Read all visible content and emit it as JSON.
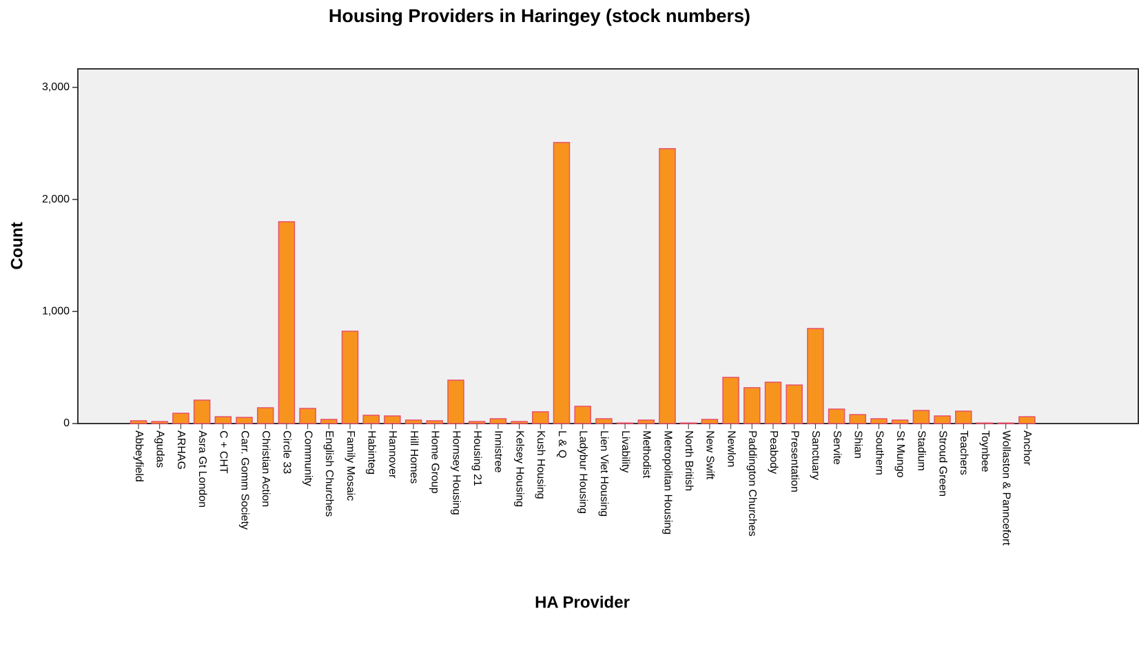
{
  "chart_data": {
    "type": "bar",
    "title": "Housing Providers in Haringey (stock numbers)",
    "x_label": "HA Provider",
    "y_label": "Count",
    "categories": [
      "Abbeyfield",
      "Agudas",
      "ARHAG",
      "Asra Gt London",
      "C + CHT",
      "Carr. Gomm Society",
      "Christian Action",
      "Circle 33",
      "Community",
      "English Churches",
      "Family Mosaic",
      "Habinteg",
      "Hannover",
      "Hill Homes",
      "Home Group",
      "Hornsey Housing",
      "Housing 21",
      "Innistree",
      "Kelsey Housing",
      "Kush Housing",
      "L & Q",
      "Ladybur Housing",
      "Lien Viet Housing",
      "Livability",
      "Methodist",
      "Metropolitan Housing",
      "North British",
      "New Swift",
      "Newlon",
      "Paddington Churches",
      "Peabody",
      "Presentation",
      "Sanctuary",
      "Servite",
      "Shian",
      "Southern",
      "St Mungo",
      "Stadium",
      "Stroud Green",
      "Teachers",
      "Toynbee",
      "Wollaston & Panncefort",
      "Anchor"
    ],
    "values": [
      25,
      18,
      92,
      209,
      61,
      55,
      141,
      1801,
      135,
      37,
      824,
      74,
      68,
      31,
      25,
      387,
      18,
      43,
      18,
      105,
      2508,
      154,
      43,
      5,
      31,
      2453,
      5,
      37,
      412,
      320,
      369,
      344,
      848,
      129,
      80,
      43,
      31,
      117,
      68,
      111,
      5,
      5,
      61
    ],
    "color": "#f7941d",
    "edge_color": "#e8506a",
    "ylim": [
      0,
      3165
    ],
    "yticks": [
      0,
      {
        "value": 1000,
        "label": "1,000"
      },
      {
        "value": 2000,
        "label": "2,000"
      },
      {
        "value": 3000,
        "label": "3,000"
      }
    ],
    "grid": false
  }
}
